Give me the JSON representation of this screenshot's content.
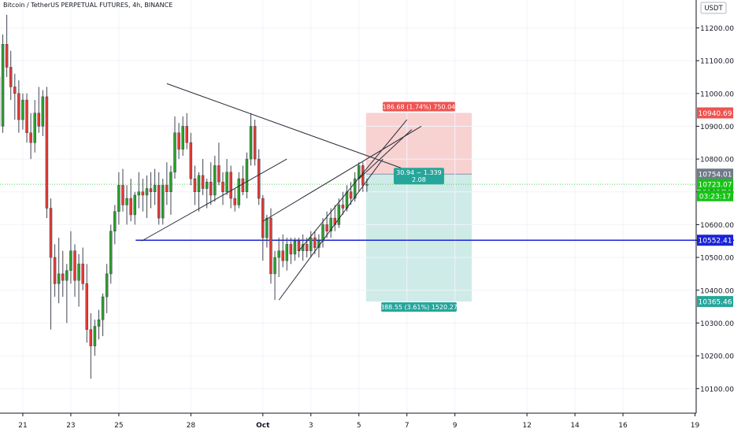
{
  "header": {
    "title": "Bitcoin / TetherUS PERPETUAL FUTURES, 4h, BINANCE",
    "currency_label": "USDT"
  },
  "colors": {
    "up": "#26a69a",
    "up_body": "#2ba02b",
    "down": "#e53935",
    "wick": "#434651",
    "support_line": "#1a23d6",
    "stop_zone": "#f7c9c9",
    "target_zone": "#c9e9e6",
    "stop_label": "#ef5350",
    "target_label": "#26a69a",
    "current_label": "#16c416",
    "support_label": "#1a23d6",
    "neutral_label": "#707a8a",
    "current_price_line": "#22cc22"
  },
  "chart_data": {
    "type": "candlestick",
    "title": "Bitcoin / TetherUS PERPETUAL FUTURES, 4h, BINANCE",
    "x_tick_labels": [
      {
        "label": "21",
        "day": 21
      },
      {
        "label": "23",
        "day": 23
      },
      {
        "label": "25",
        "day": 25
      },
      {
        "label": "28",
        "day": 28
      },
      {
        "label": "Oct",
        "day": 31
      },
      {
        "label": "3",
        "day": 33
      },
      {
        "label": "5",
        "day": 35
      },
      {
        "label": "7",
        "day": 37
      },
      {
        "label": "9",
        "day": 39
      },
      {
        "label": "12",
        "day": 42
      },
      {
        "label": "14",
        "day": 44
      },
      {
        "label": "16",
        "day": 46
      },
      {
        "label": "19",
        "day": 49
      }
    ],
    "y_ticks": [
      10100,
      10200,
      10300,
      10400,
      10500,
      10600,
      10700,
      10800,
      10900,
      11000,
      11100,
      11200
    ],
    "y_range": [
      10025,
      11285
    ],
    "x_range_days": [
      20.05,
      49.05
    ],
    "candles": [
      {
        "day": 20.0,
        "o": 11050,
        "h": 11180,
        "l": 10880,
        "c": 10900
      },
      {
        "day": 20.167,
        "o": 10900,
        "h": 11180,
        "l": 10880,
        "c": 11150
      },
      {
        "day": 20.333,
        "o": 11150,
        "h": 11240,
        "l": 11050,
        "c": 11080
      },
      {
        "day": 20.5,
        "o": 11080,
        "h": 11130,
        "l": 10980,
        "c": 11020
      },
      {
        "day": 20.667,
        "o": 11020,
        "h": 11060,
        "l": 10920,
        "c": 11000
      },
      {
        "day": 20.833,
        "o": 11000,
        "h": 11040,
        "l": 10880,
        "c": 10920
      },
      {
        "day": 21.0,
        "o": 10920,
        "h": 11000,
        "l": 10890,
        "c": 10980
      },
      {
        "day": 21.167,
        "o": 10980,
        "h": 11000,
        "l": 10850,
        "c": 10880
      },
      {
        "day": 21.333,
        "o": 10880,
        "h": 10940,
        "l": 10800,
        "c": 10850
      },
      {
        "day": 21.5,
        "o": 10850,
        "h": 10980,
        "l": 10820,
        "c": 10940
      },
      {
        "day": 21.667,
        "o": 10940,
        "h": 11020,
        "l": 10880,
        "c": 10900
      },
      {
        "day": 21.833,
        "o": 10900,
        "h": 11010,
        "l": 10870,
        "c": 10990
      },
      {
        "day": 22.0,
        "o": 10990,
        "h": 11020,
        "l": 10620,
        "c": 10650
      },
      {
        "day": 22.167,
        "o": 10650,
        "h": 10680,
        "l": 10280,
        "c": 10500
      },
      {
        "day": 22.333,
        "o": 10500,
        "h": 10540,
        "l": 10380,
        "c": 10420
      },
      {
        "day": 22.5,
        "o": 10420,
        "h": 10560,
        "l": 10360,
        "c": 10450
      },
      {
        "day": 22.667,
        "o": 10450,
        "h": 10520,
        "l": 10380,
        "c": 10430
      },
      {
        "day": 22.833,
        "o": 10430,
        "h": 10480,
        "l": 10300,
        "c": 10460
      },
      {
        "day": 23.0,
        "o": 10460,
        "h": 10580,
        "l": 10420,
        "c": 10520
      },
      {
        "day": 23.167,
        "o": 10520,
        "h": 10540,
        "l": 10380,
        "c": 10430
      },
      {
        "day": 23.333,
        "o": 10430,
        "h": 10510,
        "l": 10350,
        "c": 10480
      },
      {
        "day": 23.5,
        "o": 10480,
        "h": 10530,
        "l": 10400,
        "c": 10420
      },
      {
        "day": 23.667,
        "o": 10420,
        "h": 10480,
        "l": 10240,
        "c": 10280
      },
      {
        "day": 23.833,
        "o": 10280,
        "h": 10330,
        "l": 10130,
        "c": 10230
      },
      {
        "day": 24.0,
        "o": 10230,
        "h": 10310,
        "l": 10200,
        "c": 10290
      },
      {
        "day": 24.167,
        "o": 10290,
        "h": 10340,
        "l": 10250,
        "c": 10310
      },
      {
        "day": 24.333,
        "o": 10310,
        "h": 10390,
        "l": 10260,
        "c": 10380
      },
      {
        "day": 24.5,
        "o": 10380,
        "h": 10480,
        "l": 10330,
        "c": 10450
      },
      {
        "day": 24.667,
        "o": 10450,
        "h": 10600,
        "l": 10420,
        "c": 10580
      },
      {
        "day": 24.833,
        "o": 10580,
        "h": 10660,
        "l": 10540,
        "c": 10640
      },
      {
        "day": 25.0,
        "o": 10640,
        "h": 10760,
        "l": 10600,
        "c": 10720
      },
      {
        "day": 25.167,
        "o": 10720,
        "h": 10770,
        "l": 10640,
        "c": 10660
      },
      {
        "day": 25.333,
        "o": 10660,
        "h": 10720,
        "l": 10600,
        "c": 10680
      },
      {
        "day": 25.5,
        "o": 10680,
        "h": 10740,
        "l": 10610,
        "c": 10630
      },
      {
        "day": 25.667,
        "o": 10630,
        "h": 10700,
        "l": 10600,
        "c": 10690
      },
      {
        "day": 25.833,
        "o": 10690,
        "h": 10760,
        "l": 10650,
        "c": 10700
      },
      {
        "day": 26.0,
        "o": 10700,
        "h": 10740,
        "l": 10640,
        "c": 10690
      },
      {
        "day": 26.167,
        "o": 10690,
        "h": 10750,
        "l": 10620,
        "c": 10710
      },
      {
        "day": 26.333,
        "o": 10710,
        "h": 10760,
        "l": 10650,
        "c": 10700
      },
      {
        "day": 26.5,
        "o": 10700,
        "h": 10770,
        "l": 10660,
        "c": 10720
      },
      {
        "day": 26.667,
        "o": 10720,
        "h": 10760,
        "l": 10600,
        "c": 10620
      },
      {
        "day": 26.833,
        "o": 10620,
        "h": 10740,
        "l": 10600,
        "c": 10720
      },
      {
        "day": 27.0,
        "o": 10720,
        "h": 10790,
        "l": 10660,
        "c": 10700
      },
      {
        "day": 27.167,
        "o": 10700,
        "h": 10780,
        "l": 10630,
        "c": 10760
      },
      {
        "day": 27.333,
        "o": 10760,
        "h": 10930,
        "l": 10740,
        "c": 10880
      },
      {
        "day": 27.5,
        "o": 10880,
        "h": 10910,
        "l": 10800,
        "c": 10830
      },
      {
        "day": 27.667,
        "o": 10830,
        "h": 10930,
        "l": 10810,
        "c": 10900
      },
      {
        "day": 27.833,
        "o": 10900,
        "h": 10940,
        "l": 10830,
        "c": 10850
      },
      {
        "day": 28.0,
        "o": 10850,
        "h": 10880,
        "l": 10720,
        "c": 10740
      },
      {
        "day": 28.167,
        "o": 10740,
        "h": 10780,
        "l": 10660,
        "c": 10700
      },
      {
        "day": 28.333,
        "o": 10700,
        "h": 10760,
        "l": 10640,
        "c": 10750
      },
      {
        "day": 28.5,
        "o": 10750,
        "h": 10800,
        "l": 10690,
        "c": 10710
      },
      {
        "day": 28.667,
        "o": 10710,
        "h": 10740,
        "l": 10650,
        "c": 10730
      },
      {
        "day": 28.833,
        "o": 10730,
        "h": 10790,
        "l": 10660,
        "c": 10690
      },
      {
        "day": 29.0,
        "o": 10690,
        "h": 10810,
        "l": 10670,
        "c": 10780
      },
      {
        "day": 29.167,
        "o": 10780,
        "h": 10850,
        "l": 10720,
        "c": 10730
      },
      {
        "day": 29.333,
        "o": 10730,
        "h": 10760,
        "l": 10660,
        "c": 10700
      },
      {
        "day": 29.5,
        "o": 10700,
        "h": 10800,
        "l": 10690,
        "c": 10760
      },
      {
        "day": 29.667,
        "o": 10760,
        "h": 10780,
        "l": 10650,
        "c": 10680
      },
      {
        "day": 29.833,
        "o": 10680,
        "h": 10710,
        "l": 10640,
        "c": 10660
      },
      {
        "day": 30.0,
        "o": 10660,
        "h": 10760,
        "l": 10650,
        "c": 10740
      },
      {
        "day": 30.167,
        "o": 10740,
        "h": 10780,
        "l": 10690,
        "c": 10700
      },
      {
        "day": 30.333,
        "o": 10700,
        "h": 10820,
        "l": 10680,
        "c": 10800
      },
      {
        "day": 30.5,
        "o": 10800,
        "h": 10940,
        "l": 10780,
        "c": 10900
      },
      {
        "day": 30.667,
        "o": 10900,
        "h": 10920,
        "l": 10780,
        "c": 10800
      },
      {
        "day": 30.833,
        "o": 10800,
        "h": 10830,
        "l": 10660,
        "c": 10680
      },
      {
        "day": 31.0,
        "o": 10680,
        "h": 10690,
        "l": 10490,
        "c": 10560
      },
      {
        "day": 31.167,
        "o": 10560,
        "h": 10630,
        "l": 10530,
        "c": 10620
      },
      {
        "day": 31.333,
        "o": 10620,
        "h": 10650,
        "l": 10420,
        "c": 10450
      },
      {
        "day": 31.5,
        "o": 10450,
        "h": 10520,
        "l": 10370,
        "c": 10500
      },
      {
        "day": 31.667,
        "o": 10500,
        "h": 10560,
        "l": 10440,
        "c": 10520
      },
      {
        "day": 31.833,
        "o": 10520,
        "h": 10570,
        "l": 10470,
        "c": 10490
      },
      {
        "day": 32.0,
        "o": 10490,
        "h": 10560,
        "l": 10460,
        "c": 10540
      },
      {
        "day": 32.167,
        "o": 10540,
        "h": 10560,
        "l": 10480,
        "c": 10510
      },
      {
        "day": 32.333,
        "o": 10510,
        "h": 10560,
        "l": 10490,
        "c": 10550
      },
      {
        "day": 32.5,
        "o": 10550,
        "h": 10560,
        "l": 10500,
        "c": 10520
      },
      {
        "day": 32.667,
        "o": 10520,
        "h": 10570,
        "l": 10490,
        "c": 10540
      },
      {
        "day": 32.833,
        "o": 10540,
        "h": 10560,
        "l": 10500,
        "c": 10520
      },
      {
        "day": 33.0,
        "o": 10520,
        "h": 10580,
        "l": 10500,
        "c": 10560
      },
      {
        "day": 33.167,
        "o": 10560,
        "h": 10580,
        "l": 10510,
        "c": 10530
      },
      {
        "day": 33.333,
        "o": 10530,
        "h": 10570,
        "l": 10500,
        "c": 10550
      },
      {
        "day": 33.5,
        "o": 10550,
        "h": 10620,
        "l": 10530,
        "c": 10600
      },
      {
        "day": 33.667,
        "o": 10600,
        "h": 10640,
        "l": 10560,
        "c": 10580
      },
      {
        "day": 33.833,
        "o": 10580,
        "h": 10650,
        "l": 10560,
        "c": 10620
      },
      {
        "day": 34.0,
        "o": 10620,
        "h": 10660,
        "l": 10580,
        "c": 10600
      },
      {
        "day": 34.167,
        "o": 10600,
        "h": 10680,
        "l": 10590,
        "c": 10660
      },
      {
        "day": 34.333,
        "o": 10660,
        "h": 10700,
        "l": 10630,
        "c": 10650
      },
      {
        "day": 34.5,
        "o": 10650,
        "h": 10720,
        "l": 10640,
        "c": 10700
      },
      {
        "day": 34.667,
        "o": 10700,
        "h": 10730,
        "l": 10660,
        "c": 10680
      },
      {
        "day": 34.833,
        "o": 10680,
        "h": 10760,
        "l": 10670,
        "c": 10740
      },
      {
        "day": 35.0,
        "o": 10740,
        "h": 10790,
        "l": 10700,
        "c": 10780
      },
      {
        "day": 35.167,
        "o": 10780,
        "h": 10790,
        "l": 10700,
        "c": 10720
      },
      {
        "day": 35.333,
        "o": 10720,
        "h": 10740,
        "l": 10700,
        "c": 10723
      }
    ],
    "trendlines": [
      {
        "d1": 25.95,
        "p1": 10550,
        "d2": 32.0,
        "p2": 10800
      },
      {
        "d1": 27.0,
        "p1": 11030,
        "d2": 38.0,
        "p2": 10740
      },
      {
        "d1": 31.67,
        "p1": 10370,
        "d2": 36.0,
        "p2": 10800
      },
      {
        "d1": 31.0,
        "p1": 10610,
        "d2": 37.6,
        "p2": 10900
      },
      {
        "d1": 32.5,
        "p1": 10520,
        "d2": 37.0,
        "p2": 10920
      },
      {
        "d1": 35.0,
        "p1": 10740,
        "d2": 37.2,
        "p2": 10890
      }
    ],
    "support_level": 10552.41,
    "support_start_day": 25.7,
    "current_price": 10723.07,
    "current_price_line_start_day": 20.05,
    "position_tool": {
      "start_day": 35.3,
      "end_day": 39.7,
      "entry": 10754.01,
      "stop": 10940.69,
      "target": 10365.46,
      "stop_label": "186.68 (1.74%) 750.04",
      "target_label": "388.55 (3.61%) 1520.27",
      "ratio_label_line1": "30.94 ~ 1.339",
      "ratio_label_line2": "2.08"
    },
    "price_labels": [
      {
        "name": "stop-price-label",
        "text": "10940.69",
        "price": 10940.69,
        "color_key": "stop_label"
      },
      {
        "name": "entry-price-label",
        "text": "10754.01",
        "price": 10754.01,
        "color_key": "neutral_label"
      },
      {
        "name": "current-price-label",
        "text": "10723.07",
        "price": 10723.07,
        "color_key": "current_label"
      },
      {
        "name": "countdown-label",
        "text": "03:23:17",
        "price": 10688,
        "color_key": "current_label"
      },
      {
        "name": "support-price-label",
        "text": "10552.41",
        "price": 10552.41,
        "color_key": "support_label"
      },
      {
        "name": "target-price-label",
        "text": "10365.46",
        "price": 10365.46,
        "color_key": "target_label"
      }
    ]
  }
}
